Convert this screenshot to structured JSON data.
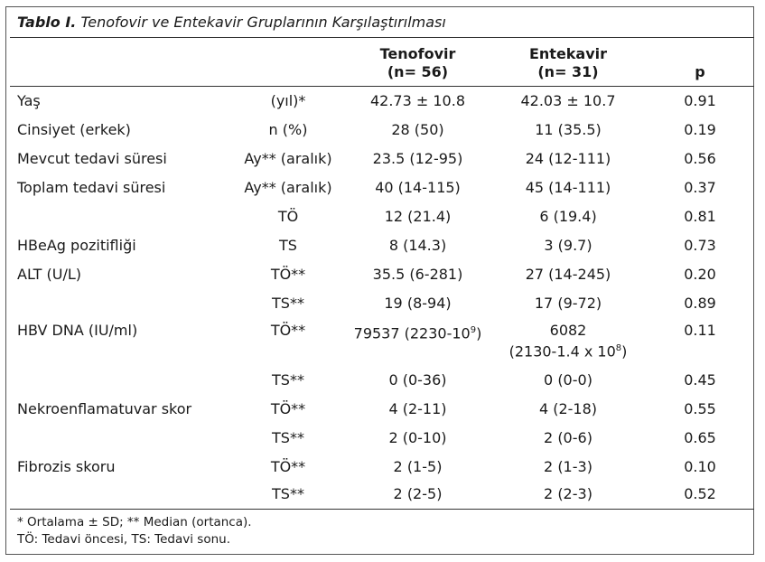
{
  "caption": {
    "label": "Tablo I.",
    "text": "Tenofovir ve Entekavir Gruplarının Karşılaştırılması"
  },
  "headers": {
    "col2_line1": "Tenofovir",
    "col2_line2": "(n= 56)",
    "col3_line1": "Entekavir",
    "col3_line2": "(n= 31)",
    "col4": "p"
  },
  "rows": [
    {
      "label": "Yaş",
      "unit": "(yıl)*",
      "tenofovir": "42.73 ± 10.8",
      "entekavir": "42.03 ± 10.7",
      "p": "0.91"
    },
    {
      "label": "Cinsiyet (erkek)",
      "unit": "n (%)",
      "tenofovir": "28 (50)",
      "entekavir": "11 (35.5)",
      "p": "0.19"
    },
    {
      "label": "Mevcut tedavi süresi",
      "unit": "Ay** (aralık)",
      "tenofovir": "23.5 (12-95)",
      "entekavir": "24 (12-111)",
      "p": "0.56"
    },
    {
      "label": "Toplam tedavi süresi",
      "unit": "Ay** (aralık)",
      "tenofovir": "40 (14-115)",
      "entekavir": "45 (14-111)",
      "p": "0.37"
    },
    {
      "label": "",
      "unit": "TÖ",
      "tenofovir": "12 (21.4)",
      "entekavir": "6 (19.4)",
      "p": "0.81"
    },
    {
      "label": "HBeAg pozitifliği",
      "unit": "TS",
      "tenofovir": "8 (14.3)",
      "entekavir": "3 (9.7)",
      "p": "0.73"
    },
    {
      "label": "ALT (U/L)",
      "unit": "TÖ**",
      "tenofovir": "35.5 (6-281)",
      "entekavir": "27 (14-245)",
      "p": "0.20"
    },
    {
      "label": "",
      "unit": "TS**",
      "tenofovir": "19 (8-94)",
      "entekavir": "17 (9-72)",
      "p": "0.89"
    },
    {
      "label": "HBV DNA (IU/ml)",
      "unit": "TÖ**",
      "tenofovir_base": "79537 (2230-10",
      "tenofovir_sup": "9",
      "tenofovir_tail": ")",
      "entekavir_line1": "6082",
      "entekavir_base": "(2130-1.4 x 10",
      "entekavir_sup": "8",
      "entekavir_tail": ")",
      "p": "0.11"
    },
    {
      "label": "",
      "unit": "TS**",
      "tenofovir": "0 (0-36)",
      "entekavir": "0 (0-0)",
      "p": "0.45"
    },
    {
      "label": "Nekroenflamatuvar skor",
      "unit": "TÖ**",
      "tenofovir": "4 (2-11)",
      "entekavir": "4 (2-18)",
      "p": "0.55"
    },
    {
      "label": "",
      "unit": "TS**",
      "tenofovir": "2 (0-10)",
      "entekavir": "2 (0-6)",
      "p": "0.65"
    },
    {
      "label": "Fibrozis skoru",
      "unit": "TÖ**",
      "tenofovir": "2 (1-5)",
      "entekavir": "2 (1-3)",
      "p": "0.10"
    },
    {
      "label": "",
      "unit": "TS**",
      "tenofovir": "2 (2-5)",
      "entekavir": "2 (2-3)",
      "p": "0.52"
    }
  ],
  "footnotes": {
    "line1": "* Ortalama ± SD; ** Median (ortanca).",
    "line2": "TÖ: Tedavi öncesi, TS: Tedavi sonu."
  }
}
